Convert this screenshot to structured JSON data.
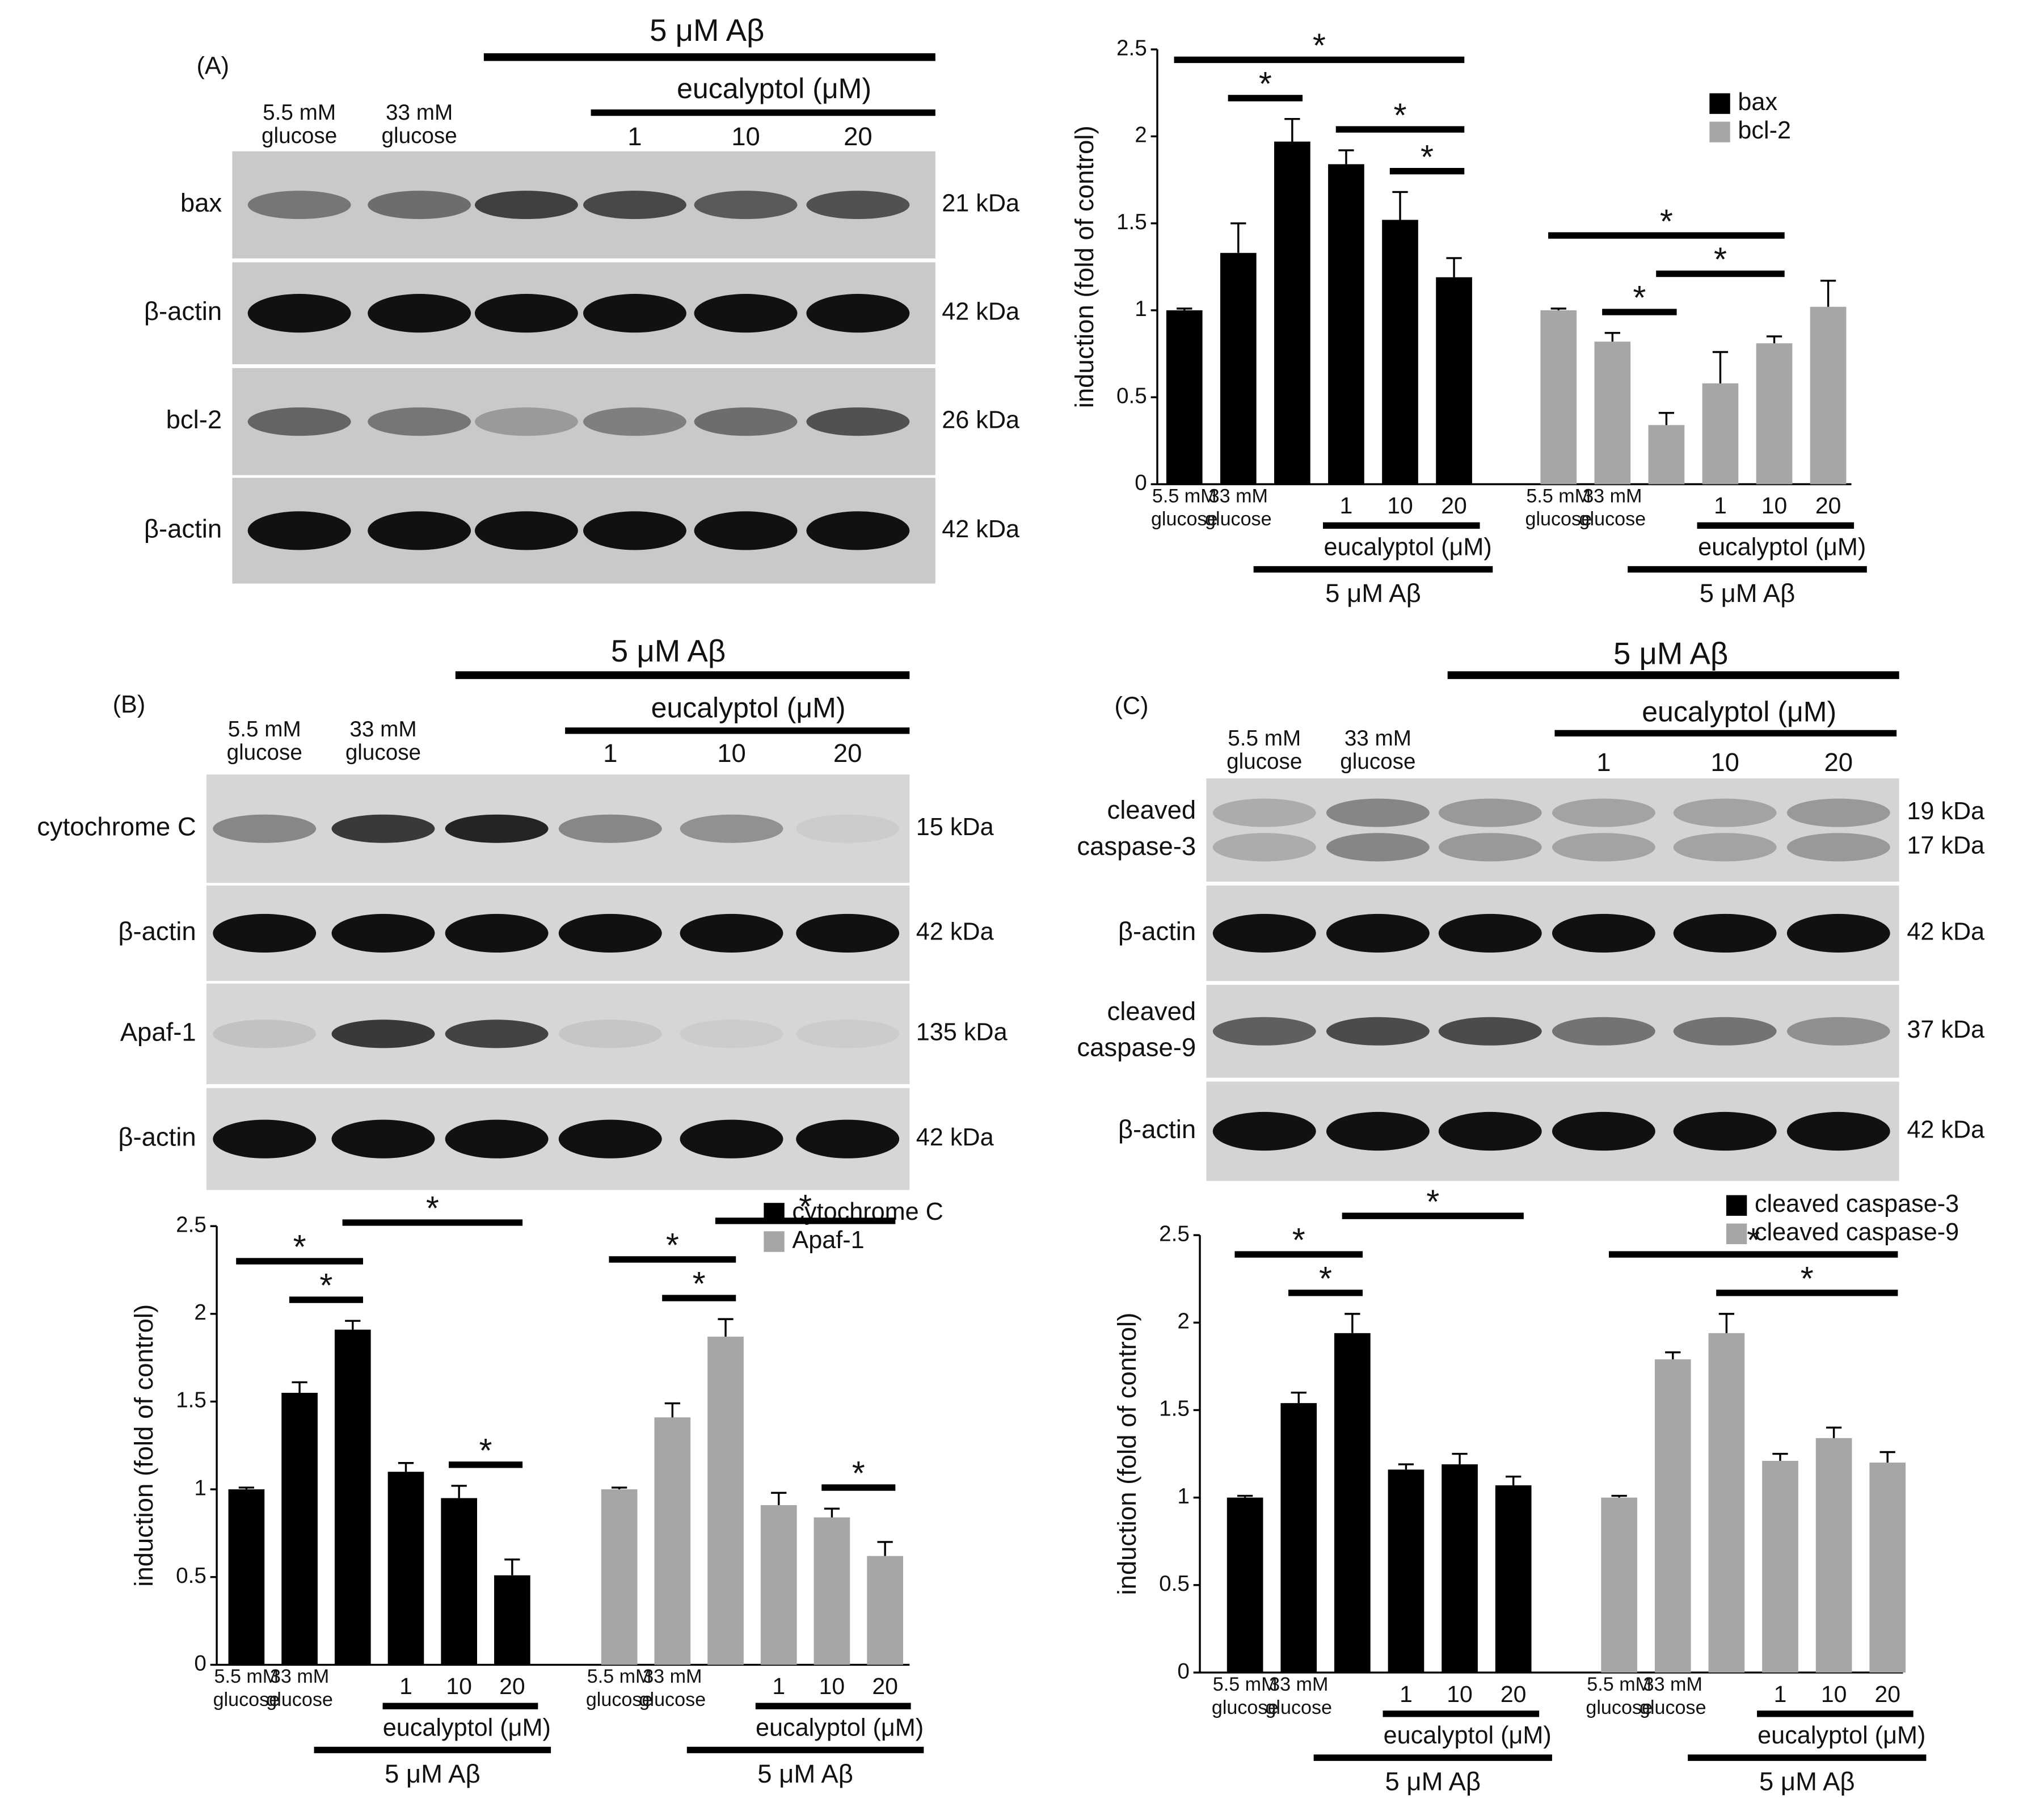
{
  "figure": {
    "panels": [
      {
        "label": "(A)",
        "treatment": "5 μM Aβ",
        "drug": "eucalyptol (μM)",
        "lanes": [
          [
            "5.5 mM",
            "glucose"
          ],
          [
            "33 mM",
            "glucose"
          ],
          null,
          [
            "1"
          ],
          [
            "10"
          ],
          [
            "20"
          ]
        ],
        "rows": [
          {
            "label": [
              "bax"
            ],
            "kda": [
              "21 kDa"
            ]
          },
          {
            "label": [
              "β-actin"
            ],
            "kda": [
              "42 kDa"
            ]
          },
          {
            "label": [
              "bcl-2"
            ],
            "kda": [
              "26 kDa"
            ]
          },
          {
            "label": [
              "β-actin"
            ],
            "kda": [
              "42 kDa"
            ]
          }
        ]
      },
      {
        "label": "(B)",
        "treatment": "5 μM Aβ",
        "drug": "eucalyptol (μM)",
        "lanes": [
          [
            "5.5 mM",
            "glucose"
          ],
          [
            "33 mM",
            "glucose"
          ],
          null,
          [
            "1"
          ],
          [
            "10"
          ],
          [
            "20"
          ]
        ],
        "rows": [
          {
            "label": [
              "cytochrome C"
            ],
            "kda": [
              "15 kDa"
            ]
          },
          {
            "label": [
              "β-actin"
            ],
            "kda": [
              "42 kDa"
            ]
          },
          {
            "label": [
              "Apaf-1"
            ],
            "kda": [
              "135 kDa"
            ]
          },
          {
            "label": [
              "β-actin"
            ],
            "kda": [
              "42 kDa"
            ]
          }
        ]
      },
      {
        "label": "(C)",
        "treatment": "5 μM Aβ",
        "drug": "eucalyptol (μM)",
        "lanes": [
          [
            "5.5 mM",
            "glucose"
          ],
          [
            "33 mM",
            "glucose"
          ],
          null,
          [
            "1"
          ],
          [
            "10"
          ],
          [
            "20"
          ]
        ],
        "rows": [
          {
            "label": [
              "cleaved",
              "caspase-3"
            ],
            "kda": [
              "19 kDa",
              "17 kDa"
            ]
          },
          {
            "label": [
              "β-actin"
            ],
            "kda": [
              "42 kDa"
            ]
          },
          {
            "label": [
              "cleaved",
              "caspase-9"
            ],
            "kda": [
              "37 kDa"
            ]
          },
          {
            "label": [
              "β-actin"
            ],
            "kda": [
              "42 kDa"
            ]
          }
        ]
      }
    ]
  },
  "chart_data": [
    {
      "type": "bar",
      "ylabel": "induction (fold of control)",
      "treatment": "5 μM Aβ",
      "drug": "eucalyptol (μM)",
      "categories": [
        [
          "5.5 mM",
          "glucose"
        ],
        [
          "33 mM",
          "glucose"
        ],
        null,
        [
          "1"
        ],
        [
          "10"
        ],
        [
          "20"
        ]
      ],
      "series": [
        {
          "name": "bax",
          "color": "#000000",
          "values": [
            1,
            1.33,
            1.97,
            1.84,
            1.52,
            1.19
          ],
          "errors": [
            0.01,
            0.17,
            0.13,
            0.08,
            0.16,
            0.11
          ]
        },
        {
          "name": "bcl-2",
          "color": "#a6a6a6",
          "values": [
            1,
            0.82,
            0.34,
            0.58,
            0.81,
            1.02
          ],
          "errors": [
            0.01,
            0.05,
            0.07,
            0.18,
            0.04,
            0.15
          ]
        }
      ],
      "significance": [
        {
          "series": 0,
          "from": 0,
          "to": 5,
          "label": "*"
        },
        {
          "series": 0,
          "from": 1,
          "to": 2,
          "label": "*"
        },
        {
          "series": 0,
          "from": 3,
          "to": 5,
          "label": "*"
        },
        {
          "series": 0,
          "from": 4,
          "to": 5,
          "label": "*"
        },
        {
          "series": 1,
          "from": 0,
          "to": 4,
          "label": "*"
        },
        {
          "series": 1,
          "from": 2,
          "to": 4,
          "label": "*"
        },
        {
          "series": 1,
          "from": 1,
          "to": 2,
          "label": "*"
        }
      ],
      "ylim": [
        0,
        2.5
      ],
      "yticks": [
        0,
        0.5,
        1,
        1.5,
        2,
        2.5
      ],
      "legend": "upper right"
    },
    {
      "type": "bar",
      "ylabel": "induction (fold of control)",
      "treatment": "5 μM Aβ",
      "drug": "eucalyptol (μM)",
      "categories": [
        [
          "5.5 mM",
          "glucose"
        ],
        [
          "33 mM",
          "glucose"
        ],
        null,
        [
          "1"
        ],
        [
          "10"
        ],
        [
          "20"
        ]
      ],
      "series": [
        {
          "name": "cytochrome C",
          "color": "#000000",
          "values": [
            1,
            1.55,
            1.91,
            1.1,
            0.95,
            0.51
          ],
          "errors": [
            0.01,
            0.06,
            0.05,
            0.05,
            0.07,
            0.09
          ]
        },
        {
          "name": "Apaf-1",
          "color": "#a6a6a6",
          "values": [
            1,
            1.41,
            1.87,
            0.91,
            0.84,
            0.62
          ],
          "errors": [
            0.01,
            0.08,
            0.1,
            0.07,
            0.05,
            0.08
          ]
        }
      ],
      "significance": [
        {
          "series": 0,
          "from": 0,
          "to": 2,
          "label": "*"
        },
        {
          "series": 0,
          "from": 1,
          "to": 2,
          "label": "*"
        },
        {
          "series": 0,
          "from": 2,
          "to": 5,
          "label": "*"
        },
        {
          "series": 0,
          "from": 4,
          "to": 5,
          "label": "*"
        },
        {
          "series": 1,
          "from": 0,
          "to": 2,
          "label": "*"
        },
        {
          "series": 1,
          "from": 1,
          "to": 2,
          "label": "*"
        },
        {
          "series": 1,
          "from": 2,
          "to": 5,
          "label": "*"
        },
        {
          "series": 1,
          "from": 4,
          "to": 5,
          "label": "*"
        }
      ],
      "ylim": [
        0,
        2.5
      ],
      "yticks": [
        0,
        0.5,
        1,
        1.5,
        2,
        2.5
      ],
      "legend": "upper center"
    },
    {
      "type": "bar",
      "ylabel": "induction (fold of control)",
      "treatment": "5 μM Aβ",
      "drug": "eucalyptol (μM)",
      "categories": [
        [
          "5.5 mM",
          "glucose"
        ],
        [
          "33 mM",
          "glucose"
        ],
        null,
        [
          "1"
        ],
        [
          "10"
        ],
        [
          "20"
        ]
      ],
      "series": [
        {
          "name": "cleaved caspase-3",
          "color": "#000000",
          "values": [
            1,
            1.54,
            1.94,
            1.16,
            1.19,
            1.07
          ],
          "errors": [
            0.01,
            0.06,
            0.11,
            0.03,
            0.06,
            0.05
          ]
        },
        {
          "name": "cleaved caspase-9",
          "color": "#a6a6a6",
          "values": [
            1,
            1.79,
            1.94,
            1.21,
            1.34,
            1.2
          ],
          "errors": [
            0.01,
            0.04,
            0.11,
            0.04,
            0.06,
            0.06
          ]
        }
      ],
      "significance": [
        {
          "series": 0,
          "from": 0,
          "to": 2,
          "label": "*"
        },
        {
          "series": 0,
          "from": 1,
          "to": 2,
          "label": "*"
        },
        {
          "series": 0,
          "from": 2,
          "to": 5,
          "label": "*"
        },
        {
          "series": 1,
          "from": 0,
          "to": 5,
          "label": "*"
        },
        {
          "series": 1,
          "from": 2,
          "to": 5,
          "label": "*"
        }
      ],
      "ylim": [
        0,
        2.5
      ],
      "yticks": [
        0,
        0.5,
        1,
        1.5,
        2,
        2.5
      ],
      "legend": "upper right"
    }
  ]
}
